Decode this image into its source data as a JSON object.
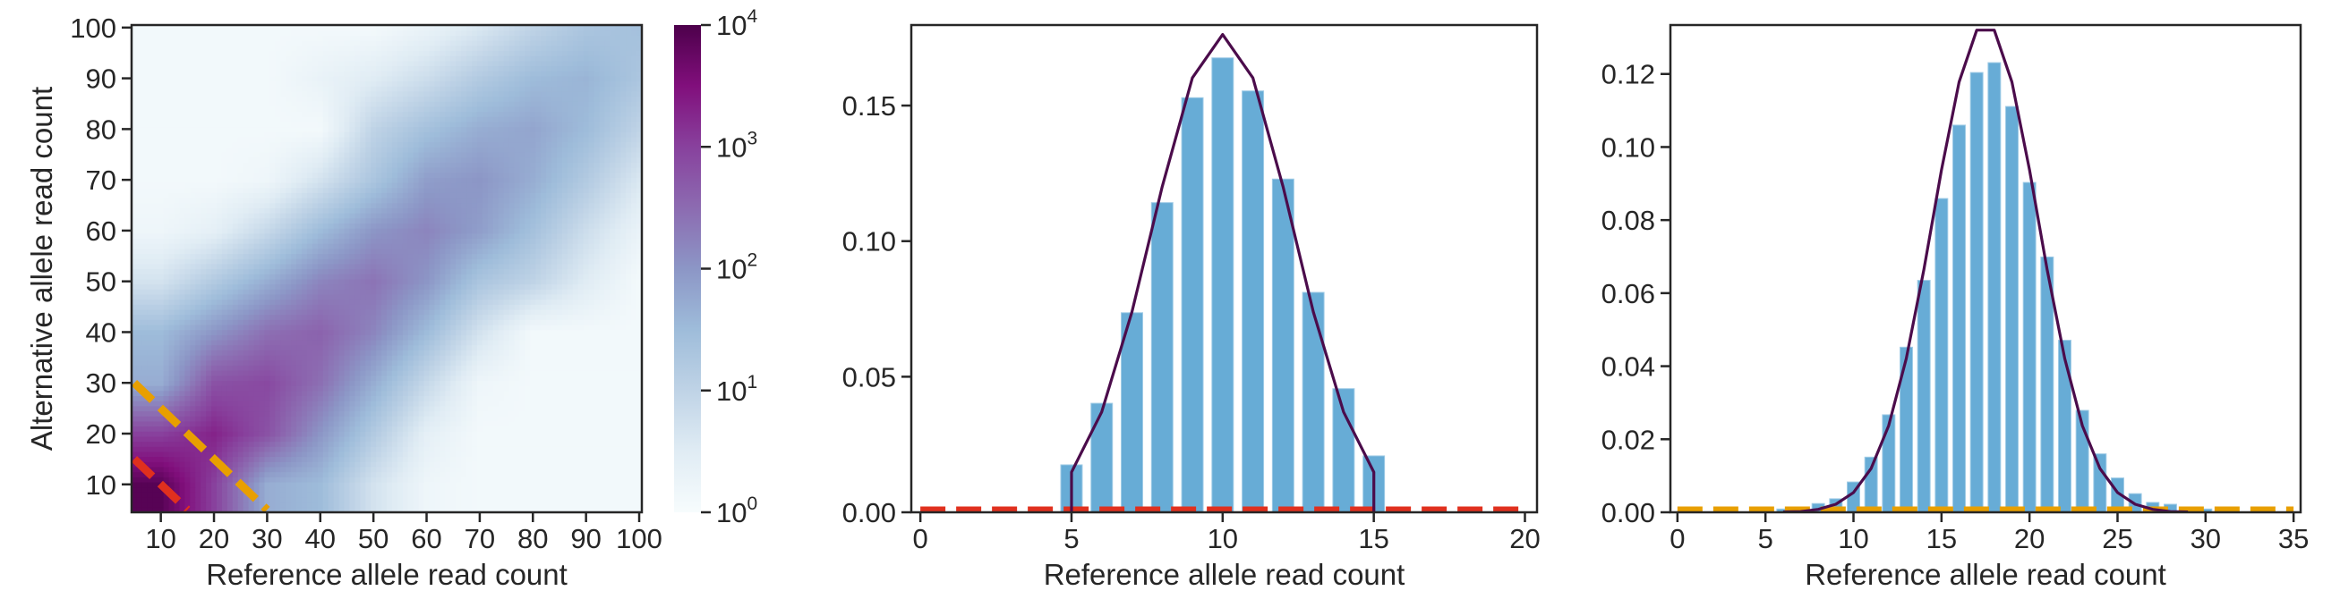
{
  "chart_data": [
    {
      "type": "heatmap",
      "xlabel": "Reference allele read count",
      "ylabel": "Alternative allele read count",
      "xlim": [
        4.5,
        100.5
      ],
      "ylim": [
        4.5,
        100.5
      ],
      "xticks": [
        10,
        20,
        30,
        40,
        50,
        60,
        70,
        80,
        90,
        100
      ],
      "yticks": [
        10,
        20,
        30,
        40,
        50,
        60,
        70,
        80,
        90,
        100
      ],
      "x_centers": [
        10,
        20,
        30,
        40,
        50,
        60,
        70,
        80,
        90,
        100
      ],
      "y_centers": [
        10,
        20,
        30,
        40,
        50,
        60,
        70,
        80,
        90,
        100
      ],
      "log10_counts": [
        [
          3.9,
          3.0,
          1.7,
          1.5,
          0.7,
          0.2,
          0.1,
          0.1,
          0.1,
          0.1
        ],
        [
          3.0,
          3.3,
          2.8,
          2.0,
          1.2,
          0.4,
          0.1,
          0.1,
          0.1,
          0.1
        ],
        [
          1.7,
          2.8,
          2.9,
          2.45,
          1.7,
          0.9,
          0.2,
          0.1,
          0.1,
          0.1
        ],
        [
          1.5,
          2.0,
          2.45,
          2.6,
          2.2,
          1.5,
          0.7,
          0.1,
          0.1,
          0.1
        ],
        [
          0.7,
          1.2,
          1.7,
          2.2,
          2.4,
          2.0,
          1.3,
          1.0,
          0.5,
          0.1
        ],
        [
          0.2,
          0.4,
          0.9,
          1.5,
          2.0,
          2.2,
          1.9,
          1.4,
          0.8,
          0.3
        ],
        [
          0.1,
          0.1,
          0.2,
          0.7,
          1.3,
          1.9,
          2.0,
          1.7,
          1.2,
          0.6
        ],
        [
          0.1,
          0.1,
          0.1,
          0.1,
          1.0,
          1.4,
          1.7,
          1.8,
          1.5,
          1.0
        ],
        [
          0.1,
          0.1,
          0.1,
          0.3,
          0.5,
          0.8,
          1.2,
          1.5,
          1.6,
          1.3
        ],
        [
          0.1,
          0.1,
          0.1,
          0.1,
          0.1,
          0.3,
          0.6,
          1.0,
          1.3,
          1.4
        ]
      ],
      "colormap": "BuPu",
      "colormap_stops": [
        "#f7fcfd",
        "#e0ecf4",
        "#bfd3e6",
        "#9ebcda",
        "#8c96c6",
        "#8c6bb1",
        "#88419d",
        "#810f7c",
        "#4d004b"
      ],
      "colorbar": {
        "scale": "log",
        "range": [
          1,
          10000
        ],
        "ticks": [
          {
            "base": "10",
            "exp": "4"
          },
          {
            "base": "10",
            "exp": "3"
          },
          {
            "base": "10",
            "exp": "2"
          },
          {
            "base": "10",
            "exp": "1"
          },
          {
            "base": "10",
            "exp": "0"
          }
        ]
      },
      "lines": [
        {
          "x": [
            5,
            15
          ],
          "y": [
            15,
            5
          ],
          "color": "#e0301e",
          "style": "dashed"
        },
        {
          "x": [
            5,
            30
          ],
          "y": [
            30,
            5
          ],
          "color": "#e89f00",
          "style": "dashed"
        }
      ]
    },
    {
      "type": "bar",
      "xlabel": "Reference allele read count",
      "xlim": [
        -0.3,
        20.4
      ],
      "ylim": [
        0,
        0.1797
      ],
      "xticks": [
        "0",
        "5",
        "10",
        "15",
        "20"
      ],
      "yticks": [
        "0.00",
        "0.05",
        "0.10",
        "0.15"
      ],
      "bar_color": "#67acd6",
      "bars": {
        "x": [
          5,
          6,
          7,
          8,
          9,
          10,
          11,
          12,
          13,
          14,
          15
        ],
        "values": [
          0.0175,
          0.0402,
          0.0736,
          0.1142,
          0.1529,
          0.1676,
          0.1554,
          0.1229,
          0.0811,
          0.0456,
          0.0208
        ]
      },
      "line": {
        "color": "#4b0c4b",
        "x": [
          5,
          5,
          6,
          7,
          8,
          9,
          10,
          11,
          12,
          13,
          14,
          15,
          15
        ],
        "y": [
          0,
          0.0148,
          0.037,
          0.0739,
          0.1201,
          0.1602,
          0.1762,
          0.1602,
          0.1201,
          0.0739,
          0.037,
          0.0148,
          0
        ]
      },
      "hline": {
        "y": 0,
        "x": [
          0,
          20
        ],
        "color": "#e0301e",
        "style": "dashed"
      }
    },
    {
      "type": "bar",
      "xlabel": "Reference allele read count",
      "xlim": [
        -0.4,
        35.4
      ],
      "ylim": [
        0,
        0.1334
      ],
      "xticks": [
        "0",
        "5",
        "10",
        "15",
        "20",
        "25",
        "30",
        "35"
      ],
      "yticks": [
        "0.00",
        "0.02",
        "0.04",
        "0.06",
        "0.08",
        "0.10",
        "0.12"
      ],
      "bar_color": "#67acd6",
      "bars": {
        "x": [
          6,
          8,
          9,
          10,
          11,
          12,
          13,
          14,
          15,
          16,
          17,
          18,
          19,
          20,
          21,
          22,
          23,
          24,
          25,
          26,
          27,
          28,
          30
        ],
        "values": [
          0.0009,
          0.0024,
          0.0037,
          0.0083,
          0.0151,
          0.0267,
          0.0452,
          0.0635,
          0.0859,
          0.106,
          0.1204,
          0.1231,
          0.1111,
          0.0903,
          0.0699,
          0.0471,
          0.0279,
          0.016,
          0.0094,
          0.0051,
          0.0027,
          0.0022,
          0.0009
        ]
      },
      "line": {
        "color": "#4b0c4b",
        "x": [
          6,
          7,
          8,
          9,
          10,
          11,
          12,
          13,
          14,
          15,
          16,
          17,
          18,
          19,
          20,
          21,
          22,
          23,
          24,
          25,
          26,
          27,
          28,
          29
        ],
        "y": [
          0.0001,
          0.0002,
          0.0008,
          0.0022,
          0.0054,
          0.012,
          0.0237,
          0.0421,
          0.0665,
          0.0937,
          0.1178,
          0.132,
          0.132,
          0.1178,
          0.0937,
          0.0665,
          0.0421,
          0.0237,
          0.012,
          0.0054,
          0.0022,
          0.0008,
          0.0002,
          0.0001
        ]
      },
      "hline": {
        "y": 0,
        "x": [
          0,
          35
        ],
        "color": "#e89f00",
        "style": "dashed"
      }
    }
  ]
}
